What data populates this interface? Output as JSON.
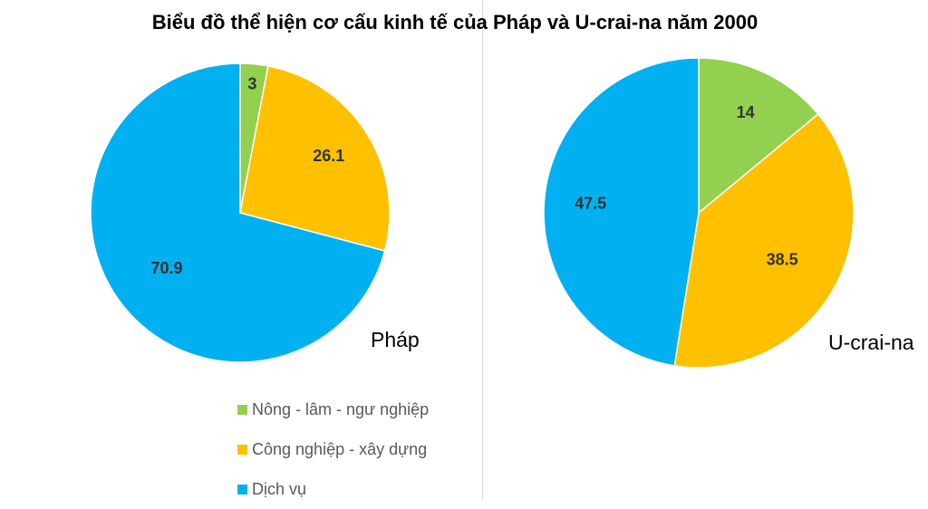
{
  "chart_data": {
    "type": "pie",
    "title": "Biểu đồ thể hiện cơ cấu kinh tế của Pháp và U-crai-na năm 2000",
    "categories": [
      "Nông - lâm - ngư nghiệp",
      "Công nghiệp - xây dựng",
      "Dịch vụ"
    ],
    "colors": [
      "#92d050",
      "#ffc000",
      "#00b0f0"
    ],
    "legend_position": "bottom-left",
    "pies": [
      {
        "name": "Pháp",
        "values": [
          3,
          26.1,
          70.9
        ]
      },
      {
        "name": "U-crai-na",
        "values": [
          14,
          38.5,
          47.5
        ]
      }
    ]
  }
}
